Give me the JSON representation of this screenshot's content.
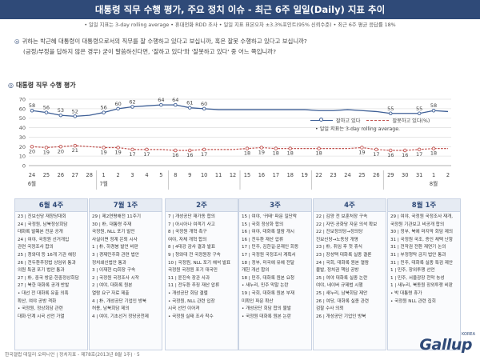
{
  "header": {
    "title": "대통령 직무 수행 평가, 주요 정치 이슈 - 최근 6주 일일(Daily) 지표 추이",
    "subtitle": "• 일일 지표는 3-day rolling average • 휴대전화 RDD 조사 • 일일 지표 표본오차 ±3.3%포인트(95% 신뢰수준) • 최근 6주 평균 응답률 18%"
  },
  "question": {
    "line1": "귀하는 박근혜 대통령이 대통령으로서의 직무를 잘 수행하고 있다고 보십니까, 혹은 잘못 수행하고 있다고 보십니까?",
    "line2": "(긍정/부정을 답하지 않은 경우) 굳이 말씀하신다면, '잘하고 있다'와 '잘못하고 있다' 중 어느 쪽입니까?"
  },
  "chart_title": "대통령 직무 수행 평가",
  "legend": {
    "positive": "잘하고 있다",
    "negative": "잘못하고 있다(%)",
    "note": "• 일일 지표는 3-day rolling average."
  },
  "colors": {
    "positive": "#3e5f96",
    "negative": "#c0504d",
    "header": "#2f4a78"
  },
  "chart_data": {
    "type": "line",
    "ylim": [
      0,
      70
    ],
    "y_ticks": [
      0,
      10,
      20,
      30,
      40,
      50,
      60,
      70
    ],
    "x": [
      "24",
      "25",
      "26",
      "27",
      "28",
      "1",
      "2",
      "3",
      "4",
      "5",
      "8",
      "9",
      "10",
      "11",
      "12",
      "15",
      "16",
      "17",
      "18",
      "19",
      "22",
      "23",
      "24",
      "25",
      "26",
      "29",
      "30",
      "31",
      "1",
      "2"
    ],
    "month_labels": [
      {
        "label": "6월",
        "index": 0
      },
      {
        "label": "7월",
        "index": 5
      },
      {
        "label": "8월",
        "index": 28
      }
    ],
    "series": [
      {
        "name": "잘하고 있다",
        "values": [
          58,
          56,
          53,
          52,
          null,
          56,
          60,
          62,
          null,
          64,
          64,
          61,
          60,
          null,
          null,
          null,
          null,
          null,
          null,
          null,
          null,
          null,
          null,
          null,
          null,
          55,
          null,
          55,
          58,
          null
        ],
        "labels": [
          "58",
          "56",
          "53",
          "52",
          "",
          "56",
          "60",
          "62",
          "",
          "64",
          "64",
          "61",
          "60",
          "",
          "",
          "",
          "",
          "",
          "",
          "",
          "",
          "",
          "",
          "",
          "",
          "55",
          "",
          "55",
          "58",
          ""
        ]
      },
      {
        "name": "잘못하고 있다",
        "values": [
          20,
          19,
          20,
          21,
          null,
          19,
          19,
          17,
          17,
          null,
          16,
          16,
          17,
          null,
          null,
          18,
          19,
          18,
          18,
          null,
          18,
          null,
          null,
          19,
          17,
          16,
          16,
          17,
          18,
          null
        ],
        "labels": [
          "20",
          "19",
          "20",
          "21",
          "",
          "19",
          "19",
          "17",
          "17",
          "",
          "16",
          "16",
          "17",
          "",
          "",
          "18",
          "19",
          "18",
          "18",
          "",
          "18",
          "",
          "",
          "19",
          "17",
          "16",
          "16",
          "17",
          "18",
          ""
        ]
      }
    ],
    "line_positive": [
      58,
      56,
      53,
      52,
      53,
      56,
      60,
      62,
      63,
      64,
      64,
      61,
      60,
      59,
      59,
      59,
      59,
      59,
      59,
      59,
      58,
      58,
      59,
      58,
      57,
      55,
      55,
      55,
      58,
      57
    ],
    "line_negative": [
      20,
      19,
      20,
      21,
      20,
      19,
      19,
      17,
      17,
      17,
      16,
      16,
      17,
      17,
      17,
      18,
      19,
      18,
      18,
      18,
      18,
      18,
      18,
      19,
      17,
      16,
      16,
      17,
      18,
      18
    ]
  },
  "weeks": [
    {
      "title": "6월 4주",
      "items": [
        "23 | 진보신당 재창당대회",
        "24 | 국정원, 남북정상회담",
        "    대화록 발췌본 전문 공개",
        "24 | 여야, 국정원 선거개입",
        "    관련 국정조사 합의",
        "25 | 청와대 등 16개 기관 해킹",
        "26 | 전두환추징법 상임위 통과",
        "    의원 특권 포기 법안 통과",
        "27 | 朴, 중국 방문·한중정상회담",
        "27 | 북한 대화록 공개 반발",
        "    • 대선 전 대화록 유출 의혹",
        "    확산, 여야 공방 격화",
        "    • 국정원, 정상회담 관련",
        "    대화·단계 시국 선언 가열"
      ]
    },
    {
      "title": "7월 1주",
      "items": [
        "29 | 제2연평해전 11주기",
        "30 | 朴, 대통령 주재",
        "    국정원, NLL 포기 발언",
        "    사실이면 정계 은퇴 시사",
        "1 | 朴, 하경봉 발언 비판",
        "3 | 경제민주화 관련 법안",
        "    정치쇄신법안 통과",
        "3 | 이재현 CJ회장 구속",
        "2 | 국정원 국정조사 시작",
        "2 | 여야, 대화록 원본",
        "    열람 요구 자료 제출",
        "4 | 朴, 개성공단 기업인 방북",
        "    허용, 남북회담 제의",
        "4 | 여야, 기초선거 정당공천제"
      ]
    },
    {
      "title": "2주",
      "items": [
        "7 | 개성공단 재가동 합의",
        "7 | 아시아나 여객기 사고",
        "8 | 국정원 개혁 촉구",
        "    여야, 자체 개혁 합의",
        "8 | 4대강 감사 결과 발표",
        "9 | 청와대 전 국정원장 구속",
        "10 | 국정원, NLL 포기 해석 발표",
        "    국정원 국정원 포기 대국민",
        "11 | 윤진숙 장관 사과",
        "11 | 전두환 추징 재산 압류",
        "    • 개성공단 회담 결렬",
        "    • 국정원, NLL 관련 입장",
        "    시국 선언 이어져",
        "    • 국정원 실태 조사 착수"
      ]
    },
    {
      "title": "3주",
      "items": [
        "15 | 여야, '귀태' 파문 일단락",
        "15 | 국회 정상화 합의",
        "16 | 여야, 대화록 열람 개시",
        "16 | 전두환 재산 압류",
        "17 | 민주, 김한길·문재인 회동",
        "17 | 국정원 국정조사 계획서",
        "18 | 정부, 미국에 유예 전달",
        "    개헌 개선 합의",
        "18 | 민주, 대화록 원본 요청",
        "    • 새누리, 민주 막말 논란",
        "19 | 국회, 대화록 원본 부재",
        "    미확인 파문 확산",
        "    • 개성공단 회담 합의 불발",
        "    • 국정원 대화록 원본 논란"
      ]
    },
    {
      "title": "4주",
      "items": [
        "22 | 김양 전 보훈처장 구속",
        "22 | 자민·공화당 자문 의석 확보",
        "22 | 진보정의당→정의당",
        "    진보신당→노동당 개명",
        "23 | 朴, 취임 후 첫 휴식",
        "23 | 장성택 대화록 실종 결론",
        "24 | 국회, 대화록 원본 열람",
        "    불발, 정치권 책임 공방",
        "25 | 여야 대화록 실종 논란",
        "    여야, 네이버 규제법 시행",
        "25 | 새누리, 남북회담 제안",
        "26 | 여당, 대화록 실종 관련",
        "    검찰 수사 의뢰",
        "26 | 개성공단 기업인 방북"
      ]
    },
    {
      "title": "8월 1주",
      "items": [
        "29 | 여야, 국정원 국정조사 재개,",
        "    국정원 기관보고 비공개 합의",
        "30 | 정부, 북에 마지막 회담 제의",
        "31 | 국정원 국조, 증인 채택 난항",
        "31 | 전작권 전환 재연기 논의",
        "31 | 부정청탁 금지 법안 통과",
        "31 | 민주, 대화록 실종 특검 제안",
        "1 | 민주, 장외투쟁 선언",
        "1 | 민주, 서울광장 천막 농성",
        "1 | 새누리, 북동원 장외투쟁 비판",
        "    • 박 대통령 휴가",
        "    • 국정원 NLL 관련 집회"
      ]
    }
  ],
  "footer": "한국갤럽 데일리 오피니언 | 정치지표 - 제78호(2013년 8월 1주) · 5",
  "logo": {
    "text": "Gallup",
    "sub": "KOREA"
  }
}
